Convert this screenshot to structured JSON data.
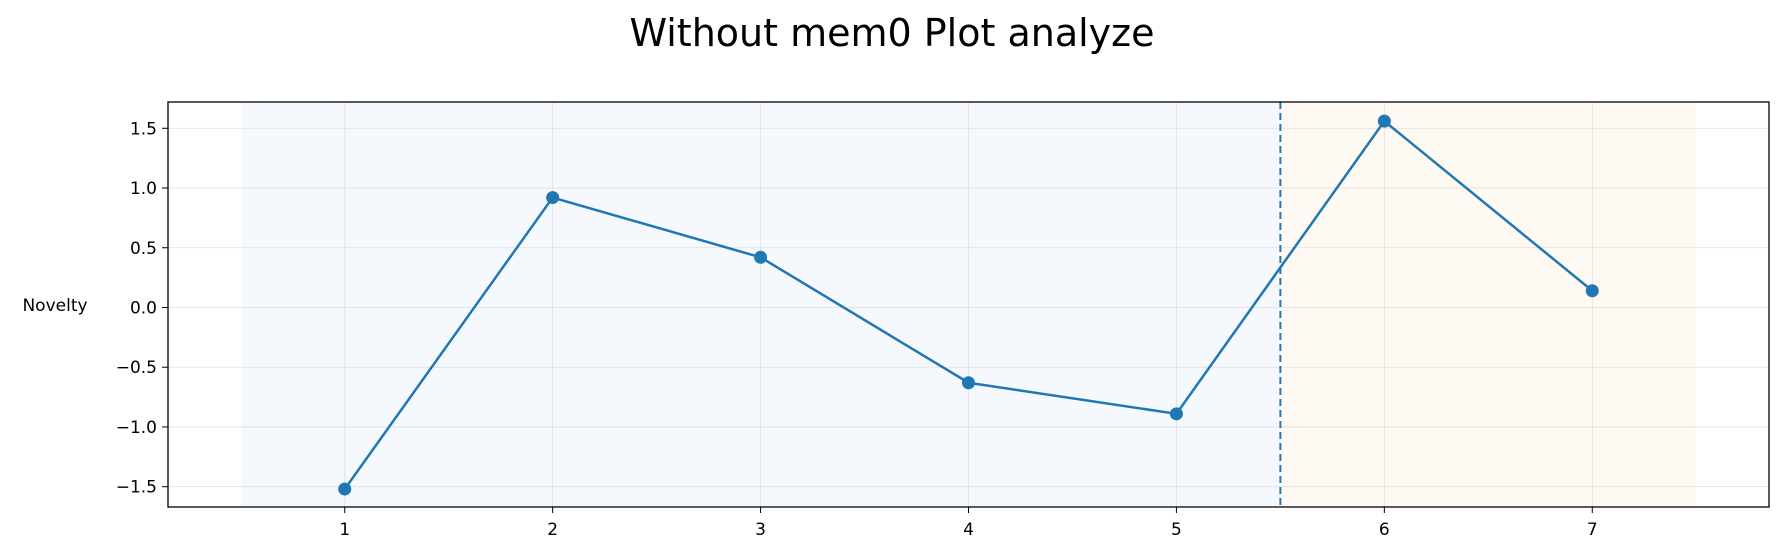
{
  "chart_data": {
    "type": "line",
    "title": "Without mem0 Plot analyze",
    "xlabel": "",
    "ylabel": "Novelty",
    "x": [
      1,
      2,
      3,
      4,
      5,
      6,
      7
    ],
    "series": [
      {
        "values": [
          -1.52,
          0.92,
          0.42,
          -0.63,
          -0.89,
          1.56,
          0.14
        ],
        "color": "#1f77b4"
      }
    ],
    "xticks": [
      "1",
      "2",
      "3",
      "4",
      "5",
      "6",
      "7"
    ],
    "yticks": [
      "1.5",
      "1.0",
      "0.5",
      "0.0",
      "−0.5",
      "−1.0",
      "−1.5"
    ],
    "ytick_values": [
      1.5,
      1.0,
      0.5,
      0.0,
      -0.5,
      -1.0,
      -1.5
    ],
    "xlim": [
      0.15,
      7.85
    ],
    "ylim": [
      -1.67,
      1.72
    ],
    "vline_x": 5.5,
    "shaded_regions": [
      {
        "x_start": 0.5,
        "x_end": 5.5,
        "color": "#f5f8fc"
      },
      {
        "x_start": 5.5,
        "x_end": 7.5,
        "color": "#fef9f2"
      }
    ],
    "grid": true
  }
}
